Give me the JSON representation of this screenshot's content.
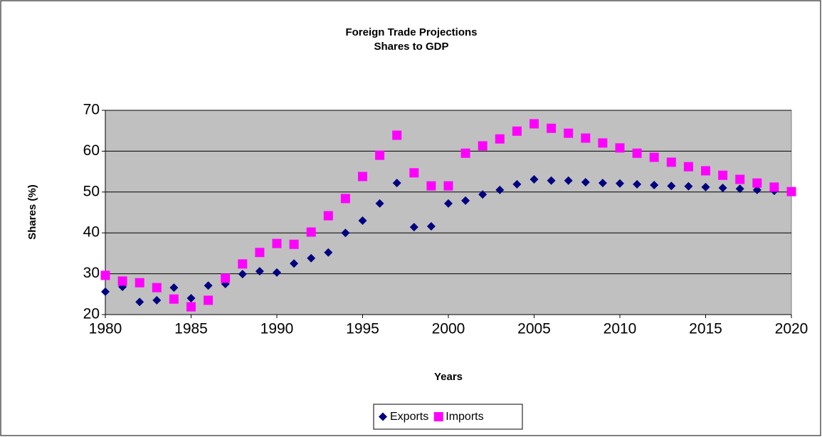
{
  "chart_data": {
    "type": "scatter",
    "title": "Foreign Trade Projections",
    "subtitle": "Shares to GDP",
    "xlabel": "Years",
    "ylabel": "Shares (%)",
    "x": [
      1980,
      1981,
      1982,
      1983,
      1984,
      1985,
      1986,
      1987,
      1988,
      1989,
      1990,
      1991,
      1992,
      1993,
      1994,
      1995,
      1996,
      1997,
      1998,
      1999,
      2000,
      2001,
      2002,
      2003,
      2004,
      2005,
      2006,
      2007,
      2008,
      2009,
      2010,
      2011,
      2012,
      2013,
      2014,
      2015,
      2016,
      2017,
      2018,
      2019,
      2020
    ],
    "series": [
      {
        "name": "Exports",
        "color": "#000080",
        "marker": "diamond",
        "values": [
          25.6,
          26.8,
          23.1,
          23.5,
          26.6,
          24.0,
          27.1,
          27.5,
          29.9,
          30.6,
          30.3,
          32.5,
          33.8,
          35.2,
          40.0,
          43.0,
          47.2,
          52.2,
          41.4,
          41.6,
          47.2,
          47.9,
          49.4,
          50.5,
          51.9,
          53.1,
          52.8,
          52.8,
          52.4,
          52.2,
          52.1,
          51.9,
          51.7,
          51.5,
          51.4,
          51.2,
          51.0,
          50.8,
          50.5,
          50.3,
          50.1
        ]
      },
      {
        "name": "Imports",
        "color": "#ff00ff",
        "marker": "square",
        "values": [
          29.6,
          28.2,
          27.8,
          26.6,
          23.8,
          21.9,
          23.5,
          28.9,
          32.4,
          35.2,
          37.4,
          37.2,
          40.2,
          44.2,
          48.4,
          53.8,
          59.0,
          63.9,
          54.7,
          51.5,
          51.5,
          59.5,
          61.3,
          63.0,
          64.9,
          66.7,
          65.6,
          64.4,
          63.2,
          62.0,
          60.8,
          59.5,
          58.5,
          57.3,
          56.2,
          55.2,
          54.1,
          53.1,
          52.2,
          51.2,
          50.1
        ]
      }
    ],
    "xlim": [
      1980,
      2020
    ],
    "xticks": [
      1980,
      1985,
      1990,
      1995,
      2000,
      2005,
      2010,
      2015,
      2020
    ],
    "ylim": [
      20,
      70
    ],
    "yticks": [
      20,
      30,
      40,
      50,
      60,
      70
    ],
    "grid": true,
    "legend": "bottom"
  }
}
